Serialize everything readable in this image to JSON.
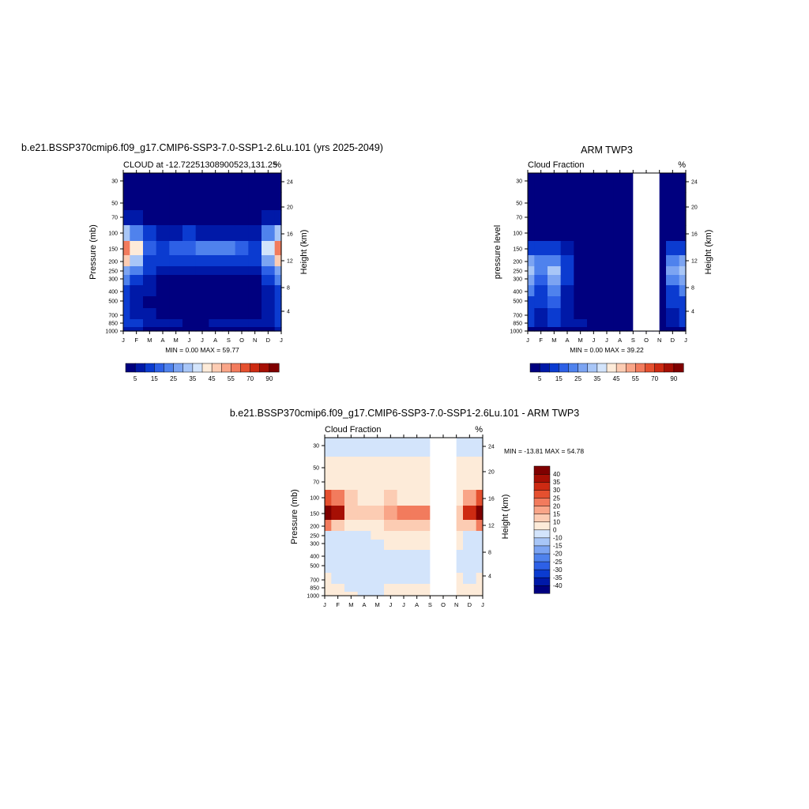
{
  "figure": {
    "months": [
      "J",
      "F",
      "M",
      "A",
      "M",
      "J",
      "J",
      "A",
      "S",
      "O",
      "N",
      "D",
      "J"
    ],
    "pressure_ticks": [
      "30",
      "50",
      "70",
      "100",
      "150",
      "200",
      "250",
      "300",
      "400",
      "500",
      "700",
      "850",
      "1000"
    ],
    "height_ticks": [
      "24",
      "20",
      "16",
      "12",
      "8",
      "4"
    ]
  },
  "chart_data": [
    {
      "type": "heatmap",
      "title": "b.e21.BSSP370cmip6.f09_g17.CMIP6-SSP3-7.0-SSP1-2.6Lu.101 (yrs 2025-2049)",
      "subtitle_left": "CLOUD at -12.72251308900523,131.25",
      "subtitle_right": "%",
      "ylabel": "Pressure (mb)",
      "ylabel_right": "Height (km)",
      "stats": "MIN =   0.00 MAX =  59.77",
      "min": 0.0,
      "max": 59.77,
      "colorbar_labels": [
        "5",
        "15",
        "25",
        "35",
        "45",
        "55",
        "70",
        "90"
      ],
      "colorbar_colors": [
        "#00007f",
        "#0019a8",
        "#0b3bd0",
        "#2d60e6",
        "#4f82ed",
        "#7ca4f2",
        "#a8c6f7",
        "#d3e4fb",
        "#fdebd9",
        "#fcccb3",
        "#f9a588",
        "#f27b5d",
        "#e5502f",
        "#cd2a12",
        "#a60f04",
        "#7f0000"
      ],
      "months": [
        "J",
        "F",
        "M",
        "A",
        "M",
        "J",
        "J",
        "A",
        "S",
        "O",
        "N",
        "D",
        "J"
      ],
      "pressure_levels": [
        30,
        50,
        70,
        100,
        150,
        200,
        250,
        300,
        400,
        500,
        700,
        850,
        1000
      ],
      "values": [
        [
          2,
          2,
          2,
          2,
          2,
          2,
          2,
          2,
          2,
          2,
          2,
          2,
          2
        ],
        [
          4,
          3,
          2,
          2,
          2,
          2,
          2,
          2,
          2,
          2,
          2,
          3,
          4
        ],
        [
          8,
          6,
          4,
          3,
          3,
          3,
          3,
          3,
          3,
          3,
          3,
          5,
          8
        ],
        [
          30,
          22,
          12,
          8,
          9,
          10,
          9,
          9,
          9,
          9,
          9,
          20,
          30
        ],
        [
          55,
          40,
          18,
          14,
          15,
          18,
          20,
          22,
          20,
          16,
          14,
          35,
          55
        ],
        [
          45,
          30,
          14,
          10,
          12,
          14,
          14,
          14,
          12,
          12,
          12,
          28,
          45
        ],
        [
          28,
          20,
          10,
          7,
          6,
          6,
          5,
          5,
          5,
          5,
          6,
          18,
          28
        ],
        [
          20,
          14,
          8,
          4,
          3,
          2,
          2,
          2,
          2,
          2,
          3,
          12,
          20
        ],
        [
          12,
          9,
          5,
          3,
          2,
          2,
          2,
          2,
          2,
          2,
          2,
          7,
          12
        ],
        [
          10,
          7,
          4,
          3,
          2,
          2,
          2,
          2,
          2,
          2,
          2,
          6,
          10
        ],
        [
          10,
          7,
          5,
          4,
          3,
          3,
          3,
          3,
          3,
          3,
          4,
          7,
          10
        ],
        [
          12,
          10,
          8,
          6,
          5,
          4,
          4,
          5,
          5,
          5,
          6,
          9,
          12
        ],
        [
          6,
          5,
          4,
          3,
          2,
          2,
          2,
          2,
          3,
          3,
          3,
          4,
          6
        ]
      ],
      "missing_months": []
    },
    {
      "type": "heatmap",
      "title": "ARM TWP3",
      "subtitle_left": "Cloud Fraction",
      "subtitle_right": "%",
      "ylabel": "pressure level",
      "ylabel_right": "Height (km)",
      "stats": "MIN =   0.00 MAX =  39.22",
      "min": 0.0,
      "max": 39.22,
      "colorbar_labels": [
        "5",
        "15",
        "25",
        "35",
        "45",
        "55",
        "70",
        "90"
      ],
      "colorbar_colors": [
        "#00007f",
        "#0019a8",
        "#0b3bd0",
        "#2d60e6",
        "#4f82ed",
        "#7ca4f2",
        "#a8c6f7",
        "#d3e4fb",
        "#fdebd9",
        "#fcccb3",
        "#f9a588",
        "#f27b5d",
        "#e5502f",
        "#cd2a12",
        "#a60f04",
        "#7f0000"
      ],
      "months": [
        "J",
        "F",
        "M",
        "A",
        "M",
        "J",
        "J",
        "A",
        "S",
        "O",
        "N",
        "D",
        "J"
      ],
      "pressure_levels": [
        30,
        50,
        70,
        100,
        150,
        200,
        250,
        300,
        400,
        500,
        700,
        850,
        1000
      ],
      "values": [
        [
          2,
          2,
          2,
          2,
          2,
          2,
          2,
          2,
          2,
          2,
          2,
          2,
          2
        ],
        [
          2,
          2,
          2,
          2,
          2,
          2,
          2,
          2,
          2,
          2,
          2,
          2,
          2
        ],
        [
          2,
          2,
          2,
          2,
          2,
          2,
          2,
          2,
          2,
          2,
          2,
          2,
          2
        ],
        [
          4,
          3,
          3,
          2,
          2,
          2,
          2,
          2,
          2,
          2,
          2,
          3,
          4
        ],
        [
          14,
          12,
          10,
          6,
          3,
          2,
          2,
          2,
          2,
          2,
          2,
          10,
          14
        ],
        [
          28,
          20,
          24,
          10,
          4,
          2,
          2,
          2,
          2,
          2,
          2,
          22,
          28
        ],
        [
          34,
          22,
          30,
          12,
          4,
          2,
          2,
          2,
          2,
          2,
          2,
          26,
          34
        ],
        [
          28,
          18,
          26,
          10,
          4,
          2,
          2,
          2,
          2,
          2,
          2,
          20,
          28
        ],
        [
          20,
          12,
          22,
          8,
          3,
          2,
          2,
          2,
          2,
          2,
          2,
          14,
          20
        ],
        [
          14,
          10,
          16,
          6,
          3,
          2,
          2,
          2,
          2,
          2,
          2,
          10,
          14
        ],
        [
          10,
          8,
          10,
          6,
          3,
          3,
          2,
          2,
          2,
          2,
          2,
          8,
          10
        ],
        [
          10,
          9,
          10,
          9,
          6,
          3,
          2,
          2,
          2,
          2,
          2,
          8,
          10
        ],
        [
          4,
          4,
          4,
          4,
          3,
          2,
          2,
          2,
          2,
          2,
          2,
          3,
          4
        ]
      ],
      "missing_months": [
        8,
        9,
        10
      ]
    },
    {
      "type": "heatmap",
      "title": "b.e21.BSSP370cmip6.f09_g17.CMIP6-SSP3-7.0-SSP1-2.6Lu.101 - ARM TWP3",
      "subtitle_left": "Cloud Fraction",
      "subtitle_right": "%",
      "ylabel": "Pressure (mb)",
      "ylabel_right": "Height (km)",
      "stats": "MIN = -13.81 MAX =  54.78",
      "min": -13.81,
      "max": 54.78,
      "colorbar_labels": [
        "40",
        "35",
        "30",
        "25",
        "20",
        "15",
        "10",
        "0",
        "-10",
        "-15",
        "-20",
        "-25",
        "-30",
        "-35",
        "-40"
      ],
      "colorbar_colors": [
        "#00007f",
        "#0019a8",
        "#0b3bd0",
        "#2d60e6",
        "#4f82ed",
        "#7ca4f2",
        "#a8c6f7",
        "#d3e4fb",
        "#fdebd9",
        "#fcccb3",
        "#f9a588",
        "#f27b5d",
        "#e5502f",
        "#cd2a12",
        "#a60f04",
        "#7f0000"
      ],
      "months": [
        "J",
        "F",
        "M",
        "A",
        "M",
        "J",
        "J",
        "A",
        "S",
        "O",
        "N",
        "D",
        "J"
      ],
      "pressure_levels": [
        30,
        50,
        70,
        100,
        150,
        200,
        250,
        300,
        400,
        500,
        700,
        850,
        1000
      ],
      "values": [
        [
          -2,
          -2,
          -2,
          -2,
          -2,
          -2,
          -2,
          -2,
          -2,
          -2,
          -2,
          -2,
          -2
        ],
        [
          2,
          1,
          1,
          1,
          1,
          1,
          1,
          1,
          1,
          1,
          1,
          1,
          2
        ],
        [
          5,
          3,
          2,
          2,
          2,
          2,
          2,
          2,
          2,
          2,
          2,
          3,
          5
        ],
        [
          28,
          20,
          10,
          8,
          9,
          10,
          9,
          9,
          9,
          9,
          9,
          18,
          28
        ],
        [
          45,
          38,
          12,
          10,
          13,
          18,
          20,
          22,
          20,
          16,
          14,
          32,
          45
        ],
        [
          22,
          14,
          2,
          1,
          8,
          12,
          12,
          12,
          10,
          10,
          10,
          10,
          22
        ],
        [
          -3,
          -1,
          -5,
          -4,
          2,
          4,
          3,
          3,
          3,
          3,
          4,
          -3,
          -3
        ],
        [
          -6,
          -3,
          -8,
          -5,
          -1,
          0,
          0,
          0,
          0,
          0,
          1,
          -6,
          -6
        ],
        [
          -7,
          -1,
          -9,
          -5,
          -2,
          -1,
          -1,
          -1,
          -1,
          -1,
          -1,
          -5,
          -7
        ],
        [
          -4,
          -1,
          -7,
          -4,
          -2,
          -2,
          -4,
          -5,
          -4,
          -1,
          -1,
          -4,
          -4
        ],
        [
          1,
          -1,
          -4,
          -2,
          -1,
          -1,
          -2,
          -3,
          -2,
          -1,
          0,
          -1,
          1
        ],
        [
          4,
          2,
          -2,
          -3,
          -2,
          1,
          2,
          3,
          2,
          1,
          2,
          2,
          4
        ],
        [
          2,
          1,
          0,
          -1,
          -1,
          0,
          0,
          0,
          0,
          0,
          0,
          1,
          2
        ]
      ],
      "missing_months": [
        8,
        9,
        10
      ]
    }
  ]
}
